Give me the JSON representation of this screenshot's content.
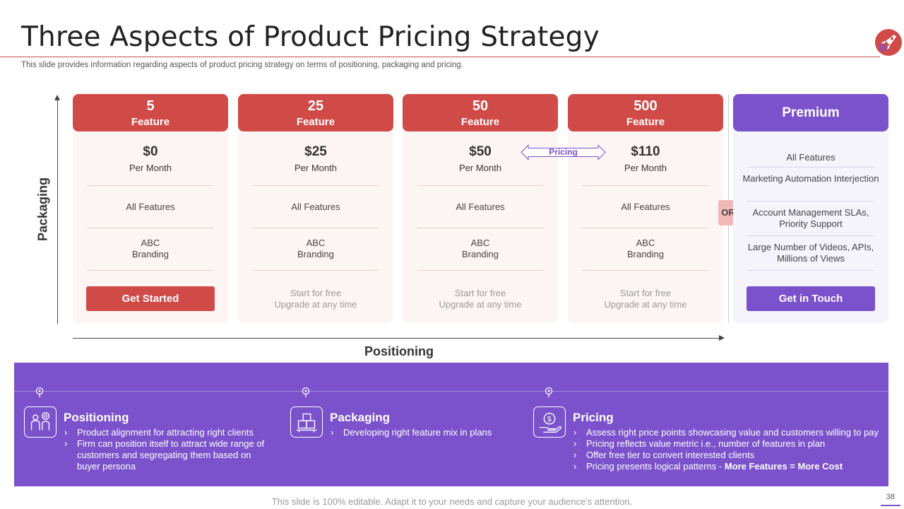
{
  "header": {
    "title": "Three Aspects of Product Pricing Strategy",
    "subtitle": "This slide provides information regarding aspects of product pricing strategy on terms of positioning, packaging and pricing."
  },
  "axes": {
    "vertical_label": "Packaging",
    "horizontal_label": "Positioning"
  },
  "plans": [
    {
      "count": "5",
      "unit": "Feature",
      "price": "$0",
      "period": "Per Month",
      "features": "All Features",
      "branding_line1": "ABC",
      "branding_line2": "Branding",
      "cta": "Get Started"
    },
    {
      "count": "25",
      "unit": "Feature",
      "price": "$25",
      "period": "Per Month",
      "features": "All Features",
      "branding_line1": "ABC",
      "branding_line2": "Branding",
      "free_line1": "Start for free",
      "free_line2": "Upgrade  at any time"
    },
    {
      "count": "50",
      "unit": "Feature",
      "price": "$50",
      "period": "Per Month",
      "features": "All Features",
      "branding_line1": "ABC",
      "branding_line2": "Branding",
      "free_line1": "Start for free",
      "free_line2": "Upgrade  at any time"
    },
    {
      "count": "500",
      "unit": "Feature",
      "price": "$110",
      "period": "Per Month",
      "features": "All Features",
      "branding_line1": "ABC",
      "branding_line2": "Branding",
      "free_line1": "Start for free",
      "free_line2": "Upgrade  at any time"
    }
  ],
  "pricing_arrow_label": "Pricing",
  "or_label": "OR",
  "premium": {
    "title": "Premium",
    "items": [
      "All Features",
      "Marketing Automation Interjection",
      "Account Management SLAs, Priority Support",
      "Large Number of Videos, APIs, Millions of Views"
    ],
    "cta": "Get in Touch"
  },
  "sections": [
    {
      "title": "Positioning",
      "icon": "people-target-icon",
      "bullets": [
        "Product alignment for attracting right clients",
        "Firm can position itself to attract wide range of customers and segregating them based on buyer persona"
      ]
    },
    {
      "title": "Packaging",
      "icon": "boxes-icon",
      "bullets": [
        "Developing  right feature  mix in plans"
      ]
    },
    {
      "title": "Pricing",
      "icon": "money-hand-icon",
      "bullets": [
        "Assess right price points showcasing value  and customers willing to pay",
        "Pricing reflects value  metric i.e., number  of features  in plan",
        "Offer free tier to convert  interested clients"
      ],
      "last_bullet_prefix": "Pricing presents logical patterns - ",
      "last_bullet_bold": "More Features = More Cost"
    }
  ],
  "footer": {
    "note": "This slide is 100% editable. Adapt it to your needs and capture your audience's attention.",
    "page_number": "38"
  },
  "colors": {
    "red": "#d04a47",
    "purple": "#7b52cb",
    "card_bg": "#fdf5f4",
    "or_badge": "#f0b9b5"
  }
}
